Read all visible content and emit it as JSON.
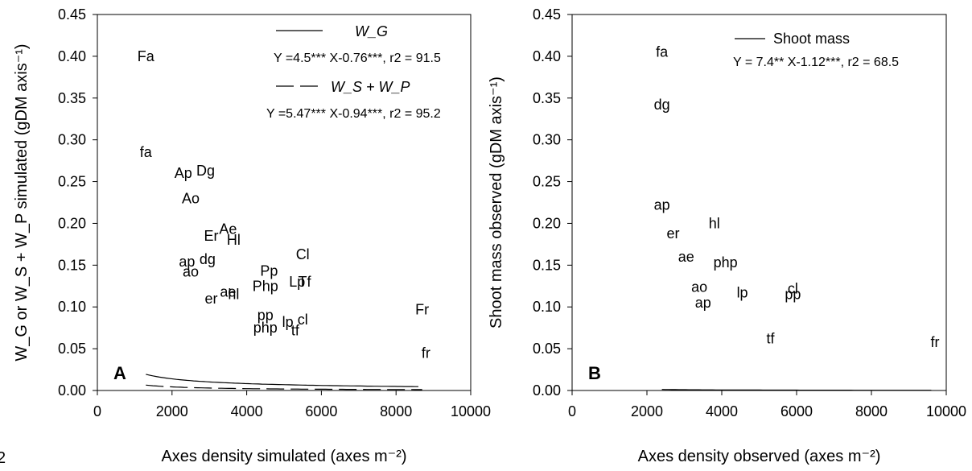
{
  "stray_text": "2",
  "chart_data": [
    {
      "panel_label": "A",
      "type": "scatter",
      "xlabel": "Axes density simulated (axes m⁻²)",
      "ylabel": "W_G or W_S + W_P simulated (gDM axis⁻¹)",
      "xlim": [
        0,
        10000
      ],
      "ylim": [
        0,
        0.45
      ],
      "xticks": [
        "0",
        "2000",
        "4000",
        "6000",
        "8000",
        "10000"
      ],
      "yticks": [
        "0.00",
        "0.05",
        "0.10",
        "0.15",
        "0.20",
        "0.25",
        "0.30",
        "0.35",
        "0.40",
        "0.45"
      ],
      "grid": false,
      "legend": [
        {
          "series": "W_G",
          "line": "solid",
          "equation": "Y =4.5*** X-0.76***, r2 = 91.5"
        },
        {
          "series": "W_S + W_P",
          "line": "dashed",
          "equation": "Y =5.47*** X-0.94***, r2 = 95.2"
        }
      ],
      "series": [
        {
          "name": "W_G",
          "points": [
            {
              "label": "Fa",
              "x": 1300,
              "y": 0.4
            },
            {
              "label": "Ap",
              "x": 2300,
              "y": 0.26
            },
            {
              "label": "Dg",
              "x": 2900,
              "y": 0.263
            },
            {
              "label": "Ao",
              "x": 2500,
              "y": 0.23
            },
            {
              "label": "Ae",
              "x": 3500,
              "y": 0.193
            },
            {
              "label": "Er",
              "x": 3050,
              "y": 0.185
            },
            {
              "label": "Hl",
              "x": 3650,
              "y": 0.18
            },
            {
              "label": "Cl",
              "x": 5500,
              "y": 0.163
            },
            {
              "label": "Pp",
              "x": 4600,
              "y": 0.143
            },
            {
              "label": "Php",
              "x": 4500,
              "y": 0.125
            },
            {
              "label": "Lp",
              "x": 5350,
              "y": 0.13
            },
            {
              "label": "Tf",
              "x": 5550,
              "y": 0.13
            },
            {
              "label": "Fr",
              "x": 8700,
              "y": 0.097
            }
          ],
          "fit": {
            "a": 4.5,
            "b": -0.76,
            "x_from": 1300,
            "x_to": 8600
          }
        },
        {
          "name": "W_S + W_P",
          "points": [
            {
              "label": "fa",
              "x": 1300,
              "y": 0.285
            },
            {
              "label": "ap",
              "x": 2400,
              "y": 0.154
            },
            {
              "label": "dg",
              "x": 2950,
              "y": 0.157
            },
            {
              "label": "ao",
              "x": 2500,
              "y": 0.142
            },
            {
              "label": "ae",
              "x": 3500,
              "y": 0.118
            },
            {
              "label": "er",
              "x": 3050,
              "y": 0.11
            },
            {
              "label": "hl",
              "x": 3650,
              "y": 0.115
            },
            {
              "label": "pp",
              "x": 4500,
              "y": 0.09
            },
            {
              "label": "php",
              "x": 4500,
              "y": 0.075
            },
            {
              "label": "lp",
              "x": 5100,
              "y": 0.082
            },
            {
              "label": "cl",
              "x": 5500,
              "y": 0.085
            },
            {
              "label": "tf",
              "x": 5300,
              "y": 0.072
            },
            {
              "label": "fr",
              "x": 8800,
              "y": 0.045
            }
          ],
          "fit": {
            "a": 5.47,
            "b": -0.94,
            "x_from": 1300,
            "x_to": 8700
          }
        }
      ]
    },
    {
      "panel_label": "B",
      "type": "scatter",
      "xlabel": "Axes density observed (axes m⁻²)",
      "ylabel": "Shoot mass observed (gDM axis⁻¹)",
      "xlim": [
        0,
        10000
      ],
      "ylim": [
        0,
        0.45
      ],
      "xticks": [
        "0",
        "2000",
        "4000",
        "6000",
        "8000",
        "10000"
      ],
      "yticks": [
        "0.00",
        "0.05",
        "0.10",
        "0.15",
        "0.20",
        "0.25",
        "0.30",
        "0.35",
        "0.40",
        "0.45"
      ],
      "grid": false,
      "legend": [
        {
          "series": "Shoot mass",
          "line": "solid",
          "equation": "Y = 7.4** X-1.12***, r2 = 68.5"
        }
      ],
      "series": [
        {
          "name": "Shoot mass",
          "points": [
            {
              "label": "fa",
              "x": 2400,
              "y": 0.405
            },
            {
              "label": "dg",
              "x": 2400,
              "y": 0.342
            },
            {
              "label": "ap",
              "x": 2400,
              "y": 0.222
            },
            {
              "label": "hl",
              "x": 3800,
              "y": 0.2
            },
            {
              "label": "er",
              "x": 2700,
              "y": 0.188
            },
            {
              "label": "ae",
              "x": 3050,
              "y": 0.16
            },
            {
              "label": "php",
              "x": 4100,
              "y": 0.153
            },
            {
              "label": "ao",
              "x": 3400,
              "y": 0.124
            },
            {
              "label": "cl",
              "x": 5900,
              "y": 0.122
            },
            {
              "label": "lp",
              "x": 4550,
              "y": 0.117
            },
            {
              "label": "pp",
              "x": 5900,
              "y": 0.115
            },
            {
              "label": "ap",
              "x": 3500,
              "y": 0.105
            },
            {
              "label": "tf",
              "x": 5300,
              "y": 0.062
            },
            {
              "label": "fr",
              "x": 9700,
              "y": 0.058
            }
          ],
          "fit": {
            "a": 7.4,
            "b": -1.12,
            "x_from": 2400,
            "x_to": 9600
          }
        }
      ]
    }
  ]
}
